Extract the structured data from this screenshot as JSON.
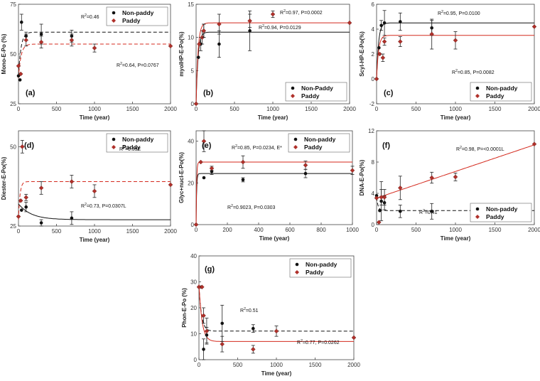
{
  "colors": {
    "non_paddy": "#111111",
    "paddy": "#d42a1e",
    "paddy_marker_fill": "#b0302a",
    "frame": "#444444"
  },
  "legend_labels_caps": [
    "Non-Paddy",
    "Paddy"
  ],
  "chart_data": [
    {
      "id": "a",
      "type": "scatter",
      "panel_label": "(a)",
      "ylabel": "Mono-E-Po (%)",
      "xlabel": "Time (year)",
      "xlim": [
        0,
        2000
      ],
      "xticks": [
        0,
        500,
        1000,
        1500,
        2000
      ],
      "ylim": [
        25,
        75
      ],
      "yticks": [
        25,
        50,
        75
      ],
      "legend": {
        "position": "top-right",
        "labels": [
          "Non-paddy",
          "Paddy"
        ]
      },
      "series": [
        {
          "name": "Non-paddy",
          "line": "dashed",
          "fit": {
            "a": 39,
            "plateau": 61,
            "k": 0.03
          },
          "points": [
            [
              0,
              39
            ],
            [
              20,
              37
            ],
            [
              40,
              66
            ],
            [
              100,
              59
            ],
            [
              300,
              60
            ],
            [
              700,
              59
            ]
          ],
          "err": [
            0,
            0,
            4,
            2,
            5,
            3
          ]
        },
        {
          "name": "Paddy",
          "line": "dashed",
          "fit": {
            "a": 38,
            "plateau": 55,
            "k": 0.03
          },
          "points": [
            [
              0,
              44
            ],
            [
              30,
              40
            ],
            [
              100,
              57
            ],
            [
              300,
              56
            ],
            [
              700,
              57
            ],
            [
              1000,
              53
            ],
            [
              2000,
              54
            ]
          ],
          "err": [
            0,
            0,
            3,
            3,
            3,
            2,
            0
          ]
        }
      ],
      "annotations": [
        {
          "series": "Non-paddy",
          "r2": "0.46",
          "p": ""
        },
        {
          "series": "Paddy",
          "r2": "0.64",
          "p": "0.0767"
        }
      ]
    },
    {
      "id": "b",
      "type": "scatter",
      "panel_label": "(b)",
      "ylabel": "myoIHP-E-Po(%)",
      "xlabel": "Time (year)",
      "xlim": [
        0,
        2000
      ],
      "xticks": [
        0,
        500,
        1000,
        1500,
        2000
      ],
      "ylim": [
        0,
        15
      ],
      "yticks": [
        0,
        5,
        10,
        15
      ],
      "legend": {
        "position": "bottom-right",
        "labels": [
          "Non-Paddy",
          "Paddy"
        ]
      },
      "series": [
        {
          "name": "Non-Paddy",
          "line": "solid",
          "fit": {
            "a": 0,
            "plateau": 10.8,
            "k": 0.04
          },
          "points": [
            [
              0,
              0
            ],
            [
              30,
              7
            ],
            [
              60,
              9
            ],
            [
              100,
              11
            ],
            [
              300,
              9
            ],
            [
              700,
              11
            ]
          ],
          "err": [
            0,
            0,
            1,
            1,
            2,
            3
          ]
        },
        {
          "name": "Paddy",
          "line": "solid",
          "fit": {
            "a": 0,
            "plateau": 12.2,
            "k": 0.04
          },
          "points": [
            [
              0,
              0
            ],
            [
              40,
              9
            ],
            [
              80,
              10
            ],
            [
              100,
              11
            ],
            [
              300,
              12
            ],
            [
              700,
              12.5
            ],
            [
              1000,
              13.5
            ],
            [
              2000,
              12.2
            ]
          ],
          "err": [
            0,
            0,
            1,
            1,
            1.5,
            1,
            0.5,
            0
          ]
        }
      ],
      "annotations": [
        {
          "series": "Paddy",
          "r2": "0.97",
          "p": "0.0002"
        },
        {
          "series": "Non-Paddy",
          "r2": "0.94",
          "p": "0.0129"
        }
      ]
    },
    {
      "id": "c",
      "type": "scatter",
      "panel_label": "(c)",
      "ylabel": "Scyl-HP-E-Po(%)",
      "xlabel": "Time (year)",
      "xlim": [
        0,
        2000
      ],
      "xticks": [
        0,
        500,
        1000,
        1500,
        2000
      ],
      "ylim": [
        -2,
        6
      ],
      "yticks": [
        -2,
        0,
        2,
        4,
        6
      ],
      "legend": {
        "position": "bottom-right",
        "labels": [
          "Non-paddy",
          "Paddy"
        ]
      },
      "series": [
        {
          "name": "Non-paddy",
          "line": "solid",
          "fit": {
            "a": 0,
            "plateau": 4.5,
            "k": 0.04
          },
          "points": [
            [
              0,
              0
            ],
            [
              30,
              2.5
            ],
            [
              60,
              4.3
            ],
            [
              100,
              4.5
            ],
            [
              300,
              4.6
            ],
            [
              700,
              4.1
            ]
          ],
          "err": [
            0,
            0,
            0.4,
            1,
            0.7,
            0.6
          ]
        },
        {
          "name": "Paddy",
          "line": "solid",
          "fit": {
            "a": 0,
            "plateau": 3.5,
            "k": 0.04
          },
          "points": [
            [
              0,
              0
            ],
            [
              40,
              2
            ],
            [
              80,
              1.7
            ],
            [
              100,
              3
            ],
            [
              300,
              3
            ],
            [
              700,
              3.6
            ],
            [
              1000,
              3.1
            ],
            [
              2000,
              4.2
            ]
          ],
          "err": [
            0,
            0,
            0.3,
            0.3,
            0.4,
            1.2,
            0.7,
            0
          ]
        }
      ],
      "annotations": [
        {
          "series": "Non-paddy",
          "r2": "0.95",
          "p": "0.0100"
        },
        {
          "series": "Paddy",
          "r2": "0.85",
          "p": "0.0082"
        }
      ]
    },
    {
      "id": "d",
      "type": "scatter",
      "panel_label": "(d)",
      "ylabel": "Diester-E-Po(%)",
      "xlabel": "Time (year)",
      "xlim": [
        0,
        2000
      ],
      "xticks": [
        0,
        500,
        1000,
        1500,
        2000
      ],
      "ylim": [
        25,
        55
      ],
      "yticks": [
        25,
        50
      ],
      "legend": {
        "position": "top-right",
        "labels": [
          "Non-paddy",
          "Paddy"
        ]
      },
      "series": [
        {
          "name": "Non-paddy",
          "line": "solid",
          "fit": {
            "a": 32,
            "plateau": 27,
            "k": 0.006
          },
          "points": [
            [
              0,
              28
            ],
            [
              40,
              30
            ],
            [
              100,
              31
            ],
            [
              300,
              26
            ],
            [
              700,
              27.5
            ]
          ],
          "err": [
            0,
            0,
            1.5,
            1,
            2
          ]
        },
        {
          "name": "Paddy",
          "line": "dashed",
          "fit": {
            "a": 27,
            "plateau": 39,
            "k": 0.05
          },
          "points": [
            [
              0,
              28
            ],
            [
              30,
              33
            ],
            [
              50,
              50
            ],
            [
              100,
              34
            ],
            [
              300,
              37
            ],
            [
              700,
              39
            ],
            [
              1000,
              36
            ],
            [
              2000,
              38
            ]
          ],
          "err": [
            0,
            0,
            2,
            1,
            2,
            2,
            2,
            0
          ]
        }
      ],
      "annotations": [
        {
          "series": "Paddy",
          "r2": "0.39E",
          "p": ""
        },
        {
          "series": "Non-paddy",
          "r2": "0.73",
          "p": "0.0307L"
        }
      ]
    },
    {
      "id": "e",
      "type": "scatter",
      "panel_label": "(e)",
      "ylabel": "Glyc+nucl-E-Po(%)",
      "xlabel": "Time (year)",
      "xlim": [
        0,
        1000
      ],
      "xticks": [
        0,
        200,
        400,
        600,
        800,
        1000
      ],
      "ylim": [
        0,
        45
      ],
      "yticks": [
        0,
        20,
        40
      ],
      "legend": {
        "position": "top-right",
        "labels": [
          "Non-paddy",
          "Paddy"
        ]
      },
      "series": [
        {
          "name": "Non-paddy",
          "line": "solid",
          "fit": {
            "a": 0,
            "plateau": 24.5,
            "k": 0.3
          },
          "points": [
            [
              0,
              0
            ],
            [
              50,
              22.5
            ],
            [
              100,
              25.5
            ],
            [
              300,
              21.5
            ],
            [
              700,
              24.5
            ]
          ],
          "err": [
            0,
            0,
            1.5,
            1,
            2
          ]
        },
        {
          "name": "Paddy",
          "line": "solid",
          "fit": {
            "a": 0,
            "plateau": 30,
            "k": 0.3
          },
          "points": [
            [
              0,
              0
            ],
            [
              30,
              30
            ],
            [
              50,
              40
            ],
            [
              100,
              27
            ],
            [
              300,
              30
            ],
            [
              700,
              28.5
            ],
            [
              1000,
              26
            ]
          ],
          "err": [
            0,
            0,
            5,
            1,
            3,
            2,
            2
          ]
        }
      ],
      "annotations": [
        {
          "series": "Paddy",
          "r2": "0.85",
          "p": "0.0234, E*"
        },
        {
          "series": "Non-paddy",
          "r2": "0.9023",
          "p": "0.0303"
        }
      ]
    },
    {
      "id": "f",
      "type": "scatter",
      "panel_label": "(f)",
      "ylabel": "DNA-E-Po(%)",
      "xlabel": "Time (year)",
      "xlim": [
        0,
        2000
      ],
      "xticks": [
        0,
        500,
        1000,
        1500,
        2000
      ],
      "ylim": [
        0,
        12
      ],
      "yticks": [
        0,
        4,
        8,
        12
      ],
      "legend": {
        "position": "bottom-right",
        "labels": [
          "Non-paddy",
          "Paddy"
        ]
      },
      "series": [
        {
          "name": "Non-paddy",
          "line": "dashed",
          "fit": {
            "a": 3.5,
            "plateau": 1.8,
            "k": 0.05
          },
          "points": [
            [
              0,
              3.7
            ],
            [
              40,
              1.8
            ],
            [
              60,
              3
            ],
            [
              100,
              2.8
            ],
            [
              300,
              1.7
            ],
            [
              700,
              1.7
            ]
          ],
          "err": [
            0,
            0,
            2.5,
            0.9,
            0.8,
            1
          ]
        },
        {
          "name": "Paddy",
          "line": "solid",
          "linear": {
            "slope": 0.0034,
            "intercept": 3.4
          },
          "points": [
            [
              0,
              3.4
            ],
            [
              30,
              0.3
            ],
            [
              60,
              3.5
            ],
            [
              100,
              3.5
            ],
            [
              300,
              4.7
            ],
            [
              700,
              6
            ],
            [
              1000,
              6.1
            ],
            [
              2000,
              10.3
            ]
          ],
          "err": [
            0,
            0,
            1,
            1,
            1.5,
            0.7,
            0.5,
            0
          ]
        }
      ],
      "annotations": [
        {
          "series": "Paddy",
          "r2": "0.98",
          "p": "<0.0001L"
        },
        {
          "series": "Non-paddy",
          "r2": "0.41",
          "p": ""
        }
      ]
    },
    {
      "id": "g",
      "type": "scatter",
      "panel_label": "(g)",
      "ylabel": "Phon-E-Po (%)",
      "xlabel": "Time (year)",
      "xlim": [
        0,
        2000
      ],
      "xticks": [
        0,
        500,
        1000,
        1500,
        2000
      ],
      "ylim": [
        0,
        40
      ],
      "yticks": [
        0,
        10,
        20,
        30,
        40
      ],
      "legend": {
        "position": "top-right",
        "labels": [
          "Non-paddy",
          "Paddy"
        ]
      },
      "series": [
        {
          "name": "Non-paddy",
          "line": "dashed",
          "fit": {
            "a": 28.5,
            "plateau": 11,
            "k": 0.03
          },
          "points": [
            [
              0,
              28
            ],
            [
              30,
              28
            ],
            [
              60,
              4
            ],
            [
              100,
              9.5
            ],
            [
              300,
              14
            ],
            [
              700,
              12
            ]
          ],
          "err": [
            0,
            0,
            4,
            3,
            7,
            1.5
          ]
        },
        {
          "name": "Paddy",
          "line": "solid",
          "fit": {
            "a": 29,
            "plateau": 7,
            "k": 0.025
          },
          "points": [
            [
              0,
              28
            ],
            [
              40,
              28
            ],
            [
              60,
              17
            ],
            [
              100,
              11
            ],
            [
              300,
              6
            ],
            [
              700,
              4
            ],
            [
              1000,
              11
            ],
            [
              2000,
              8.5
            ]
          ],
          "err": [
            0,
            0,
            3,
            5,
            3,
            1.5,
            2,
            0
          ]
        }
      ],
      "annotations": [
        {
          "series": "Non-paddy",
          "r2": "0.51",
          "p": ""
        },
        {
          "series": "Paddy",
          "r2": "0.77",
          "p": "0.0262"
        }
      ]
    }
  ]
}
